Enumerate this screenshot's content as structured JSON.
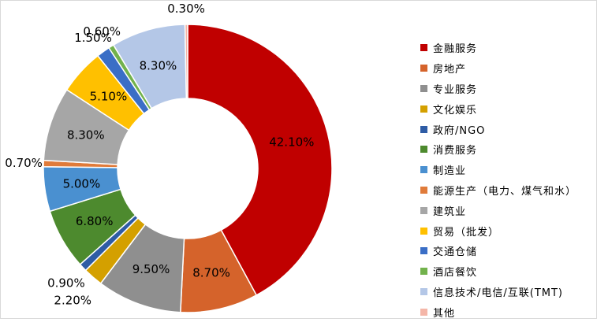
{
  "chart_data": {
    "type": "pie",
    "variant": "donut",
    "categories": [
      "金融服务",
      "房地产",
      "专业服务",
      "文化娱乐",
      "政府/NGO",
      "消费服务",
      "制造业",
      "能源生产（电力、煤气和水）",
      "建筑业",
      "贸易（批发）",
      "交通仓储",
      "酒店餐饮",
      "信息技术/电信/互联(TMT)",
      "其他"
    ],
    "values": [
      42.1,
      8.7,
      9.5,
      2.2,
      0.9,
      6.8,
      5.0,
      0.7,
      8.3,
      5.1,
      1.5,
      0.6,
      8.3,
      0.3
    ],
    "labels": [
      "42.10%",
      "8.70%",
      "9.50%",
      "2.20%",
      "0.90%",
      "6.80%",
      "5.00%",
      "0.70%",
      "8.30%",
      "5.10%",
      "1.50%",
      "0.60%",
      "8.30%",
      "0.30%"
    ],
    "colors": [
      "#c00000",
      "#d5632b",
      "#8f8f8f",
      "#d4a000",
      "#2e5ca5",
      "#4d8a2e",
      "#4a90d0",
      "#e07b3a",
      "#a6a6a6",
      "#ffc000",
      "#3a6ec6",
      "#72b24c",
      "#b4c7e7",
      "#f4b6a8"
    ],
    "legend_position": "right",
    "start_angle": "top, clockwise"
  }
}
